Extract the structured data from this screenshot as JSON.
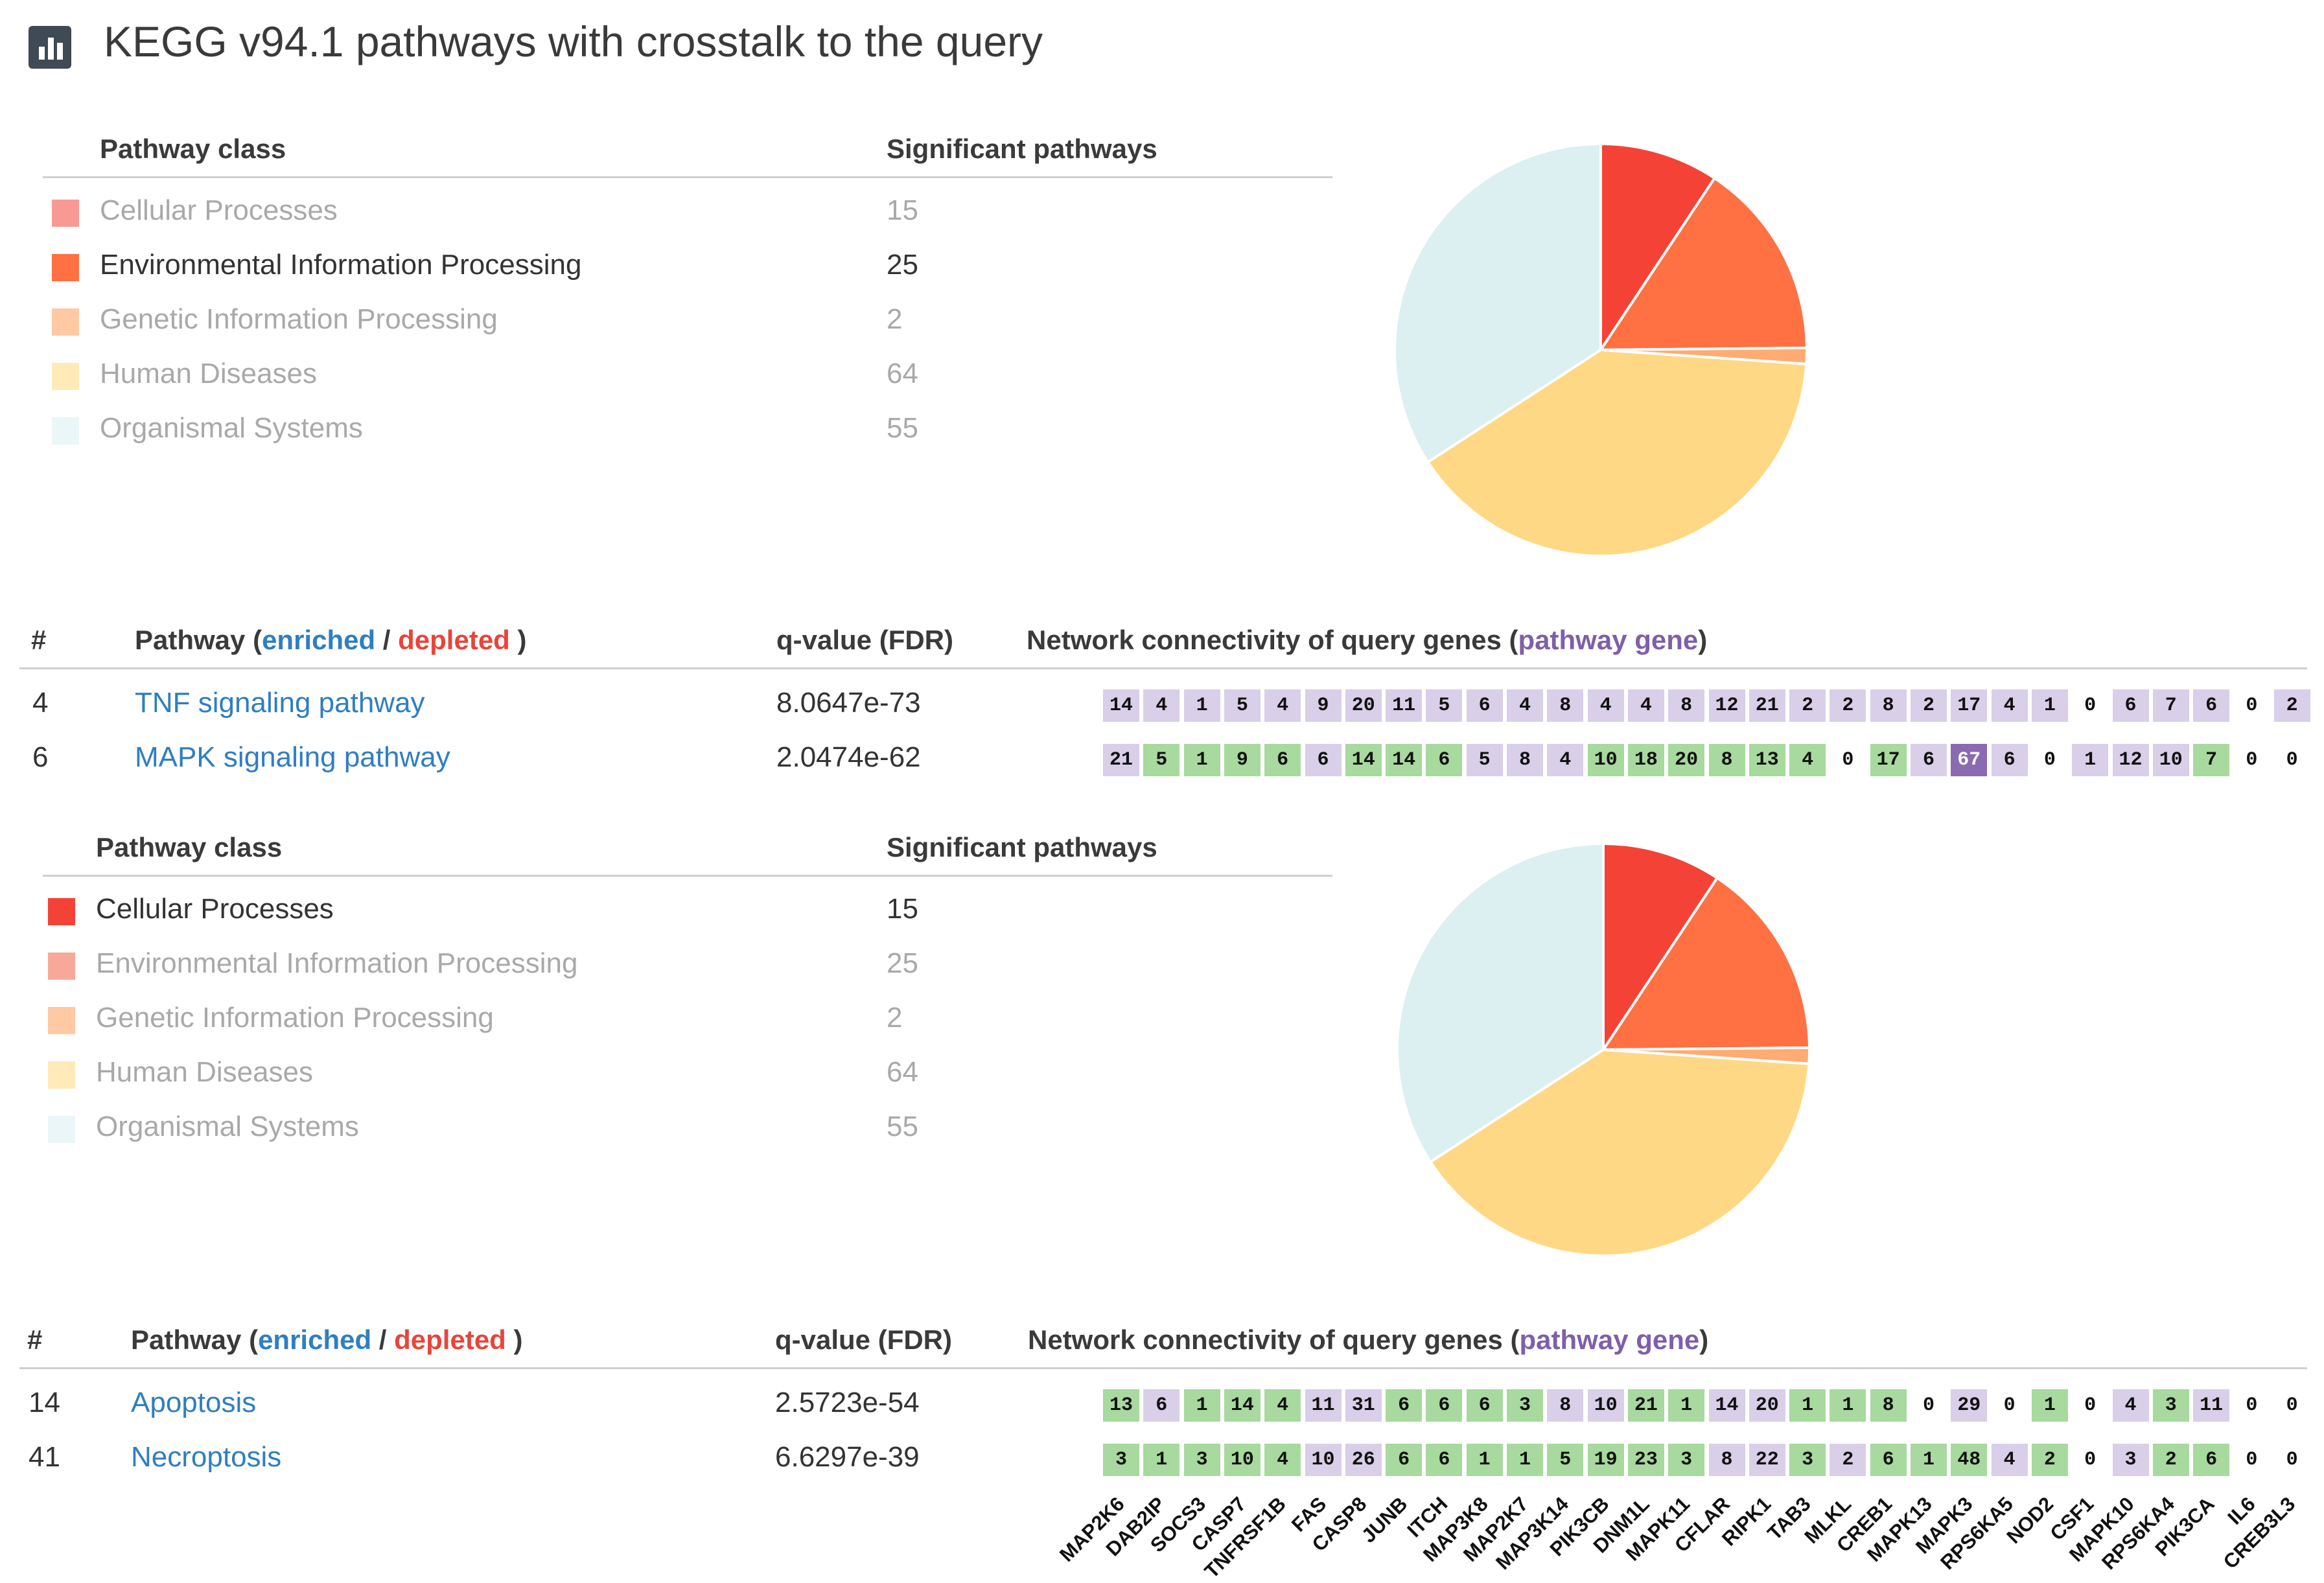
{
  "title": "KEGG v94.1 pathways with crosstalk to the query",
  "icon": "bar-chart-icon",
  "colors": {
    "cellular": "#f44336",
    "environmental": "#ff7043",
    "genetic": "#ffab73",
    "human": "#ffd885",
    "organismal": "#dceff1",
    "enriched": "#2f7ec1",
    "depleted": "#e9443a",
    "pathway_gene": "#7e5fa8",
    "cell_purple_light": "#d9cfe8",
    "cell_purple_dark": "#8a6ab0",
    "cell_green": "#a8d99e",
    "cell_zero": "#ffffff"
  },
  "sections": [
    {
      "class_header": {
        "name": "Pathway class",
        "count": "Significant pathways"
      },
      "classes": [
        {
          "name": "Cellular Processes",
          "count": "15",
          "color": "#f89a93",
          "highlight": false
        },
        {
          "name": "Environmental Information Processing",
          "count": "25",
          "color": "#ff7043",
          "highlight": true
        },
        {
          "name": "Genetic Information Processing",
          "count": "2",
          "color": "#ffc9a3",
          "highlight": false
        },
        {
          "name": "Human Diseases",
          "count": "64",
          "color": "#ffeab8",
          "highlight": false
        },
        {
          "name": "Organismal Systems",
          "count": "55",
          "color": "#eaf6f7",
          "highlight": false
        }
      ],
      "pie": {
        "values": [
          15,
          25,
          2,
          64,
          55
        ],
        "colors": [
          "#f44336",
          "#ff7043",
          "#ffab73",
          "#ffd885",
          "#dceff1"
        ]
      },
      "pathway_header": {
        "hash": "#",
        "pathway": "Pathway (",
        "enriched": "enriched",
        "slash": " / ",
        "depleted": "depleted",
        "close": " )",
        "qvalue": "q-value (FDR)",
        "network": "Network connectivity of query genes (",
        "pathway_gene": "pathway gene",
        "network_close": ")"
      },
      "pathways": [
        {
          "rank": "4",
          "name": "TNF signaling pathway",
          "qvalue": "8.0647e-73",
          "cells": [
            "14",
            "4",
            "1",
            "5",
            "4",
            "9",
            "20",
            "11",
            "5",
            "6",
            "4",
            "8",
            "4",
            "4",
            "8",
            "12",
            "21",
            "2",
            "2",
            "8",
            "2",
            "17",
            "4",
            "1",
            "0",
            "6",
            "7",
            "6",
            "0",
            "2"
          ],
          "kinds": [
            "p",
            "p",
            "p",
            "p",
            "p",
            "p",
            "p",
            "p",
            "p",
            "p",
            "p",
            "p",
            "p",
            "p",
            "p",
            "p",
            "p",
            "p",
            "p",
            "p",
            "p",
            "p",
            "p",
            "p",
            "z",
            "p",
            "p",
            "p",
            "z",
            "p"
          ]
        },
        {
          "rank": "6",
          "name": "MAPK signaling pathway",
          "qvalue": "2.0474e-62",
          "cells": [
            "21",
            "5",
            "1",
            "9",
            "6",
            "6",
            "14",
            "14",
            "6",
            "5",
            "8",
            "4",
            "10",
            "18",
            "20",
            "8",
            "13",
            "4",
            "0",
            "17",
            "6",
            "67",
            "6",
            "0",
            "1",
            "12",
            "10",
            "7",
            "0",
            "0"
          ],
          "kinds": [
            "p",
            "g",
            "g",
            "g",
            "g",
            "p",
            "g",
            "g",
            "g",
            "p",
            "p",
            "p",
            "g",
            "g",
            "g",
            "g",
            "g",
            "g",
            "z",
            "g",
            "p",
            "d",
            "p",
            "z",
            "p",
            "p",
            "p",
            "g",
            "z",
            "z"
          ]
        }
      ]
    },
    {
      "class_header": {
        "name": "Pathway class",
        "count": "Significant pathways"
      },
      "classes": [
        {
          "name": "Cellular Processes",
          "count": "15",
          "color": "#f44336",
          "highlight": true
        },
        {
          "name": "Environmental Information Processing",
          "count": "25",
          "color": "#f8a898",
          "highlight": false
        },
        {
          "name": "Genetic Information Processing",
          "count": "2",
          "color": "#ffc9a3",
          "highlight": false
        },
        {
          "name": "Human Diseases",
          "count": "64",
          "color": "#ffeab8",
          "highlight": false
        },
        {
          "name": "Organismal Systems",
          "count": "55",
          "color": "#eaf6f7",
          "highlight": false
        }
      ],
      "pie": {
        "values": [
          15,
          25,
          2,
          64,
          55
        ],
        "colors": [
          "#f44336",
          "#ff7043",
          "#ffab73",
          "#ffd885",
          "#dceff1"
        ]
      },
      "pathway_header": {
        "hash": "#",
        "pathway": "Pathway (",
        "enriched": "enriched",
        "slash": " / ",
        "depleted": "depleted",
        "close": " )",
        "qvalue": "q-value (FDR)",
        "network": "Network connectivity of query genes (",
        "pathway_gene": "pathway gene",
        "network_close": ")"
      },
      "pathways": [
        {
          "rank": "14",
          "name": "Apoptosis",
          "qvalue": "2.5723e-54",
          "cells": [
            "13",
            "6",
            "1",
            "14",
            "4",
            "11",
            "31",
            "6",
            "6",
            "6",
            "3",
            "8",
            "10",
            "21",
            "1",
            "14",
            "20",
            "1",
            "1",
            "8",
            "0",
            "29",
            "0",
            "1",
            "0",
            "4",
            "3",
            "11",
            "0",
            "0"
          ],
          "kinds": [
            "g",
            "p",
            "g",
            "g",
            "g",
            "p",
            "p",
            "g",
            "g",
            "g",
            "g",
            "p",
            "p",
            "g",
            "g",
            "p",
            "p",
            "g",
            "g",
            "g",
            "z",
            "p",
            "z",
            "g",
            "z",
            "p",
            "g",
            "p",
            "z",
            "z"
          ]
        },
        {
          "rank": "41",
          "name": "Necroptosis",
          "qvalue": "6.6297e-39",
          "cells": [
            "3",
            "1",
            "3",
            "10",
            "4",
            "10",
            "26",
            "6",
            "6",
            "1",
            "1",
            "5",
            "19",
            "23",
            "3",
            "8",
            "22",
            "3",
            "2",
            "6",
            "1",
            "48",
            "4",
            "2",
            "0",
            "3",
            "2",
            "6",
            "0",
            "0"
          ],
          "kinds": [
            "g",
            "g",
            "g",
            "g",
            "g",
            "p",
            "p",
            "g",
            "g",
            "g",
            "g",
            "g",
            "g",
            "g",
            "g",
            "p",
            "p",
            "g",
            "p",
            "g",
            "g",
            "g",
            "p",
            "g",
            "z",
            "p",
            "g",
            "g",
            "z",
            "z"
          ]
        }
      ]
    }
  ],
  "genes": [
    "MAP2K6",
    "DAB2IP",
    "SOCS3",
    "CASP7",
    "TNFRSF1B",
    "FAS",
    "CASP8",
    "JUNB",
    "ITCH",
    "MAP3K8",
    "MAP2K7",
    "MAP3K14",
    "PIK3CB",
    "DNM1L",
    "MAPK11",
    "CFLAR",
    "RIPK1",
    "TAB3",
    "MLKL",
    "CREB1",
    "MAPK13",
    "MAPK3",
    "RPS6KA5",
    "NOD2",
    "CSF1",
    "MAPK10",
    "RPS6KA4",
    "PIK3CA",
    "IL6",
    "CREB3L3"
  ]
}
